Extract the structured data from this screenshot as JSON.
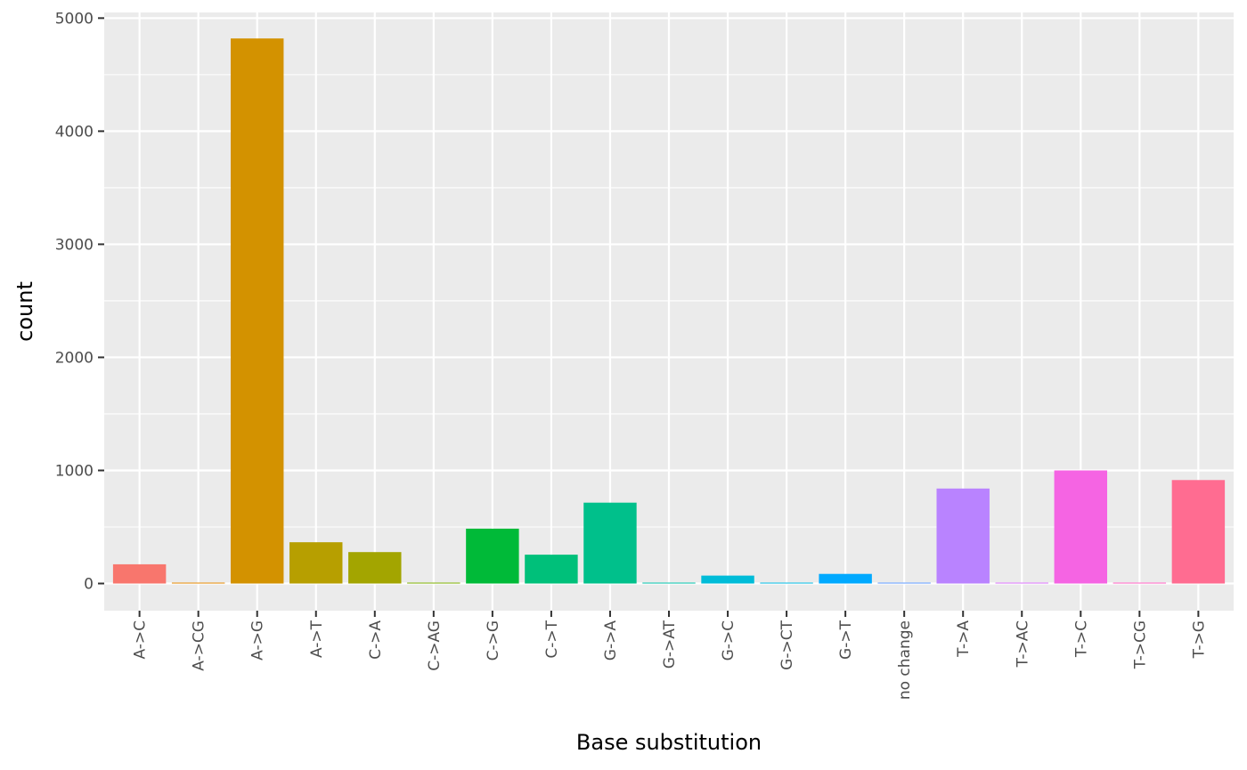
{
  "chart_data": {
    "type": "bar",
    "title": "",
    "xlabel": "Base substitution",
    "ylabel": "count",
    "ylim": [
      -240,
      5050
    ],
    "yticks": [
      0,
      1000,
      2000,
      3000,
      4000,
      5000
    ],
    "grid": true,
    "legend": "none",
    "categories": [
      "A->C",
      "A->CG",
      "A->G",
      "A->T",
      "C->A",
      "C->AG",
      "C->G",
      "C->T",
      "G->A",
      "G->AT",
      "G->C",
      "G->CT",
      "G->T",
      "no change",
      "T->A",
      "T->AC",
      "T->C",
      "T->CG",
      "T->G"
    ],
    "values": [
      170,
      2,
      4820,
      365,
      278,
      2,
      485,
      255,
      715,
      2,
      70,
      2,
      85,
      8,
      840,
      2,
      1000,
      2,
      915
    ],
    "colors": [
      "#F8766D",
      "#E58700",
      "#D39200",
      "#B79F00",
      "#A3A500",
      "#7CAE00",
      "#00BA38",
      "#00C07A",
      "#00C08B",
      "#00C1AA",
      "#00BCD8",
      "#00B9E3",
      "#00A9FF",
      "#619CFF",
      "#B983FF",
      "#DB72FB",
      "#F564E3",
      "#FF61C3",
      "#FF6C91"
    ]
  }
}
